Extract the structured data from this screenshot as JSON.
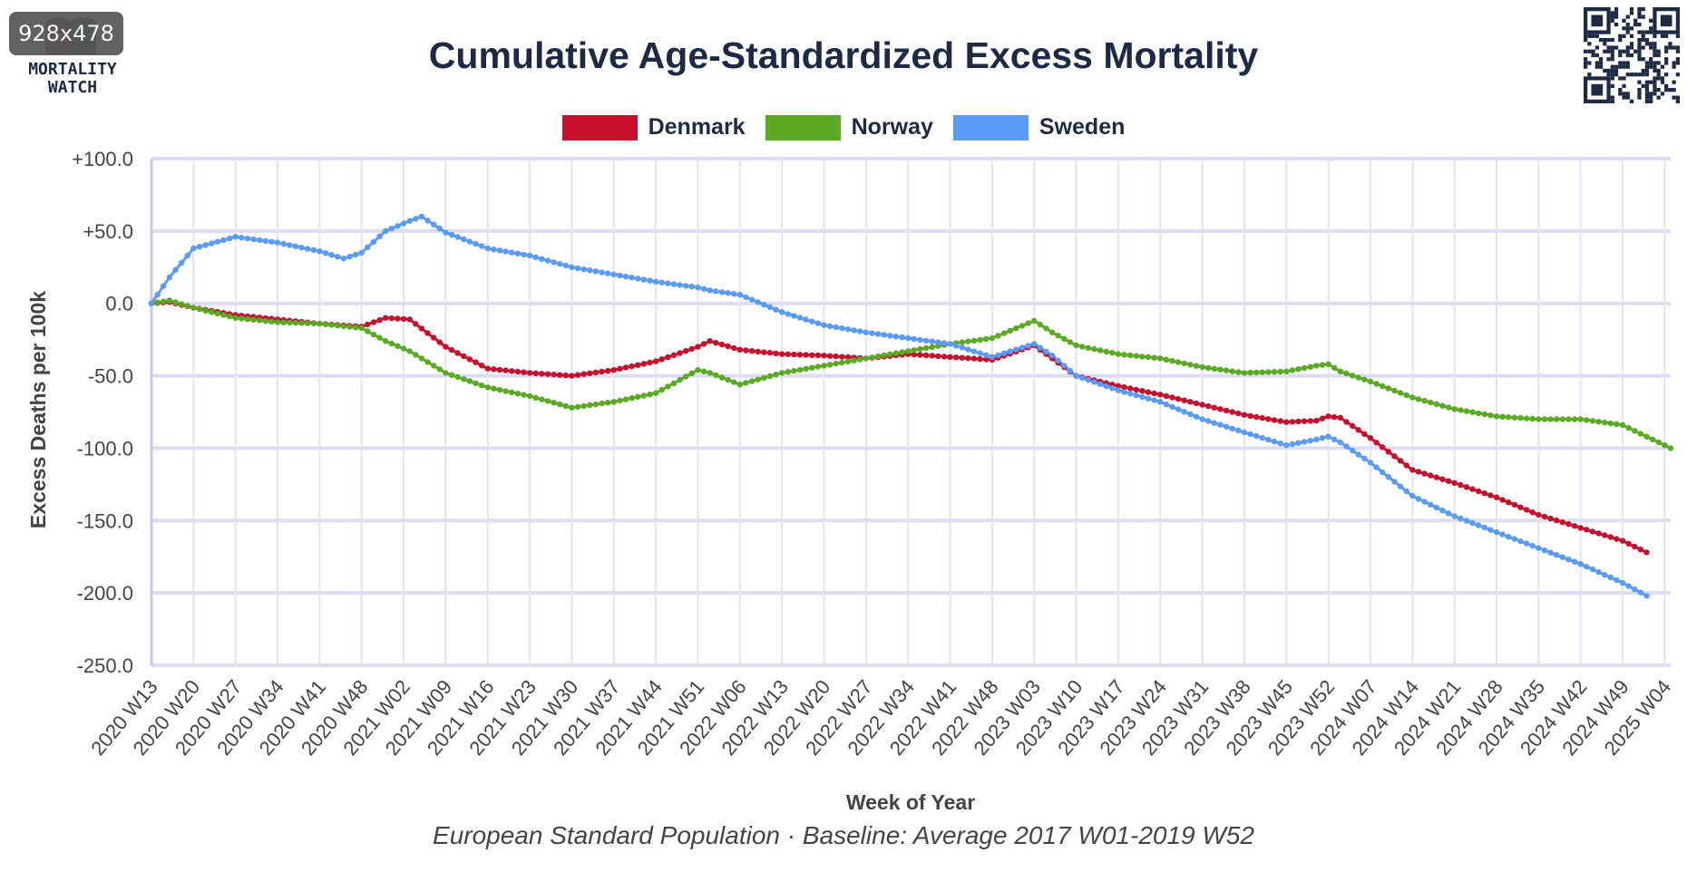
{
  "badge": "928x478",
  "logo": {
    "text_line1": "MORTALITY",
    "text_line2": "WATCH"
  },
  "caption": "European Standard Population · Baseline: Average 2017 W01-2019 W52",
  "chart_data": {
    "type": "line",
    "title": "Cumulative Age-Standardized Excess Mortality",
    "xlabel": "Week of Year",
    "ylabel": "Excess Deaths per 100k",
    "ylim": [
      -250,
      100
    ],
    "yticks": [
      100,
      50,
      0,
      -50,
      -100,
      -150,
      -200,
      -250
    ],
    "ytick_labels": [
      "+100.0",
      "+50.0",
      "0.0",
      "-50.0",
      "-100.0",
      "-150.0",
      "-200.0",
      "-250.0"
    ],
    "x_start": "2020 W13",
    "x_end": "2025 W05",
    "xtick_labels": [
      "2020 W13",
      "2020 W20",
      "2020 W27",
      "2020 W34",
      "2020 W41",
      "2020 W48",
      "2021 W02",
      "2021 W09",
      "2021 W16",
      "2021 W23",
      "2021 W30",
      "2021 W37",
      "2021 W44",
      "2021 W51",
      "2022 W06",
      "2022 W13",
      "2022 W20",
      "2022 W27",
      "2022 W34",
      "2022 W41",
      "2022 W48",
      "2023 W03",
      "2023 W10",
      "2023 W17",
      "2023 W24",
      "2023 W31",
      "2023 W38",
      "2023 W45",
      "2023 W52",
      "2024 W07",
      "2024 W14",
      "2024 W21",
      "2024 W28",
      "2024 W35",
      "2024 W42",
      "2024 W49",
      "2025 W04"
    ],
    "grid": true,
    "legend_position": "top-center",
    "series": [
      {
        "name": "Denmark",
        "color": "#c8102e",
        "points": [
          [
            "2020 W13",
            0
          ],
          [
            "2020 W16",
            1
          ],
          [
            "2020 W20",
            -3
          ],
          [
            "2020 W27",
            -8
          ],
          [
            "2020 W34",
            -11
          ],
          [
            "2020 W41",
            -14
          ],
          [
            "2020 W48",
            -16
          ],
          [
            "2020 W52",
            -10
          ],
          [
            "2021 W03",
            -11
          ],
          [
            "2021 W09",
            -30
          ],
          [
            "2021 W16",
            -45
          ],
          [
            "2021 W23",
            -48
          ],
          [
            "2021 W30",
            -50
          ],
          [
            "2021 W37",
            -46
          ],
          [
            "2021 W44",
            -40
          ],
          [
            "2021 W51",
            -30
          ],
          [
            "2021 W53",
            -26
          ],
          [
            "2022 W06",
            -32
          ],
          [
            "2022 W13",
            -35
          ],
          [
            "2022 W20",
            -36
          ],
          [
            "2022 W27",
            -38
          ],
          [
            "2022 W34",
            -35
          ],
          [
            "2022 W41",
            -37
          ],
          [
            "2022 W48",
            -39
          ],
          [
            "2023 W03",
            -29
          ],
          [
            "2023 W06",
            -38
          ],
          [
            "2023 W10",
            -50
          ],
          [
            "2023 W17",
            -57
          ],
          [
            "2023 W24",
            -63
          ],
          [
            "2023 W31",
            -70
          ],
          [
            "2023 W38",
            -77
          ],
          [
            "2023 W45",
            -82
          ],
          [
            "2023 W50",
            -81
          ],
          [
            "2023 W52",
            -78
          ],
          [
            "2024 W02",
            -79
          ],
          [
            "2024 W07",
            -93
          ],
          [
            "2024 W14",
            -115
          ],
          [
            "2024 W21",
            -124
          ],
          [
            "2024 W28",
            -134
          ],
          [
            "2024 W35",
            -146
          ],
          [
            "2024 W42",
            -155
          ],
          [
            "2024 W49",
            -164
          ],
          [
            "2024 W53",
            -172
          ]
        ]
      },
      {
        "name": "Norway",
        "color": "#5aaa23",
        "points": [
          [
            "2020 W13",
            0
          ],
          [
            "2020 W16",
            2
          ],
          [
            "2020 W20",
            -3
          ],
          [
            "2020 W27",
            -10
          ],
          [
            "2020 W34",
            -13
          ],
          [
            "2020 W41",
            -14
          ],
          [
            "2020 W48",
            -17
          ],
          [
            "2020 W52",
            -26
          ],
          [
            "2021 W03",
            -33
          ],
          [
            "2021 W09",
            -48
          ],
          [
            "2021 W16",
            -58
          ],
          [
            "2021 W23",
            -64
          ],
          [
            "2021 W30",
            -72
          ],
          [
            "2021 W37",
            -68
          ],
          [
            "2021 W44",
            -62
          ],
          [
            "2021 W51",
            -46
          ],
          [
            "2021 W53",
            -48
          ],
          [
            "2022 W06",
            -56
          ],
          [
            "2022 W13",
            -48
          ],
          [
            "2022 W20",
            -43
          ],
          [
            "2022 W27",
            -38
          ],
          [
            "2022 W34",
            -33
          ],
          [
            "2022 W41",
            -28
          ],
          [
            "2022 W48",
            -24
          ],
          [
            "2023 W03",
            -12
          ],
          [
            "2023 W06",
            -20
          ],
          [
            "2023 W10",
            -29
          ],
          [
            "2023 W17",
            -35
          ],
          [
            "2023 W24",
            -38
          ],
          [
            "2023 W31",
            -44
          ],
          [
            "2023 W38",
            -48
          ],
          [
            "2023 W45",
            -47
          ],
          [
            "2023 W50",
            -43
          ],
          [
            "2023 W52",
            -42
          ],
          [
            "2024 W02",
            -47
          ],
          [
            "2024 W07",
            -54
          ],
          [
            "2024 W14",
            -65
          ],
          [
            "2024 W21",
            -73
          ],
          [
            "2024 W28",
            -78
          ],
          [
            "2024 W35",
            -80
          ],
          [
            "2024 W42",
            -80
          ],
          [
            "2024 W49",
            -84
          ],
          [
            "2025 W05",
            -100
          ]
        ]
      },
      {
        "name": "Sweden",
        "color": "#5b9bf8",
        "points": [
          [
            "2020 W13",
            0
          ],
          [
            "2020 W16",
            18
          ],
          [
            "2020 W20",
            38
          ],
          [
            "2020 W27",
            46
          ],
          [
            "2020 W34",
            42
          ],
          [
            "2020 W41",
            36
          ],
          [
            "2020 W45",
            31
          ],
          [
            "2020 W48",
            35
          ],
          [
            "2020 W52",
            50
          ],
          [
            "2021 W03",
            57
          ],
          [
            "2021 W05",
            60
          ],
          [
            "2021 W09",
            49
          ],
          [
            "2021 W16",
            38
          ],
          [
            "2021 W23",
            33
          ],
          [
            "2021 W30",
            25
          ],
          [
            "2021 W37",
            20
          ],
          [
            "2021 W44",
            15
          ],
          [
            "2021 W51",
            11
          ],
          [
            "2021 W53",
            9
          ],
          [
            "2022 W06",
            6
          ],
          [
            "2022 W13",
            -6
          ],
          [
            "2022 W20",
            -15
          ],
          [
            "2022 W27",
            -20
          ],
          [
            "2022 W34",
            -24
          ],
          [
            "2022 W41",
            -28
          ],
          [
            "2022 W48",
            -37
          ],
          [
            "2023 W03",
            -28
          ],
          [
            "2023 W06",
            -36
          ],
          [
            "2023 W10",
            -50
          ],
          [
            "2023 W17",
            -60
          ],
          [
            "2023 W24",
            -68
          ],
          [
            "2023 W31",
            -80
          ],
          [
            "2023 W38",
            -89
          ],
          [
            "2023 W45",
            -98
          ],
          [
            "2023 W50",
            -94
          ],
          [
            "2023 W52",
            -92
          ],
          [
            "2024 W02",
            -96
          ],
          [
            "2024 W07",
            -110
          ],
          [
            "2024 W14",
            -133
          ],
          [
            "2024 W21",
            -147
          ],
          [
            "2024 W28",
            -158
          ],
          [
            "2024 W35",
            -169
          ],
          [
            "2024 W42",
            -180
          ],
          [
            "2024 W49",
            -193
          ],
          [
            "2024 W53",
            -202
          ]
        ]
      }
    ]
  }
}
